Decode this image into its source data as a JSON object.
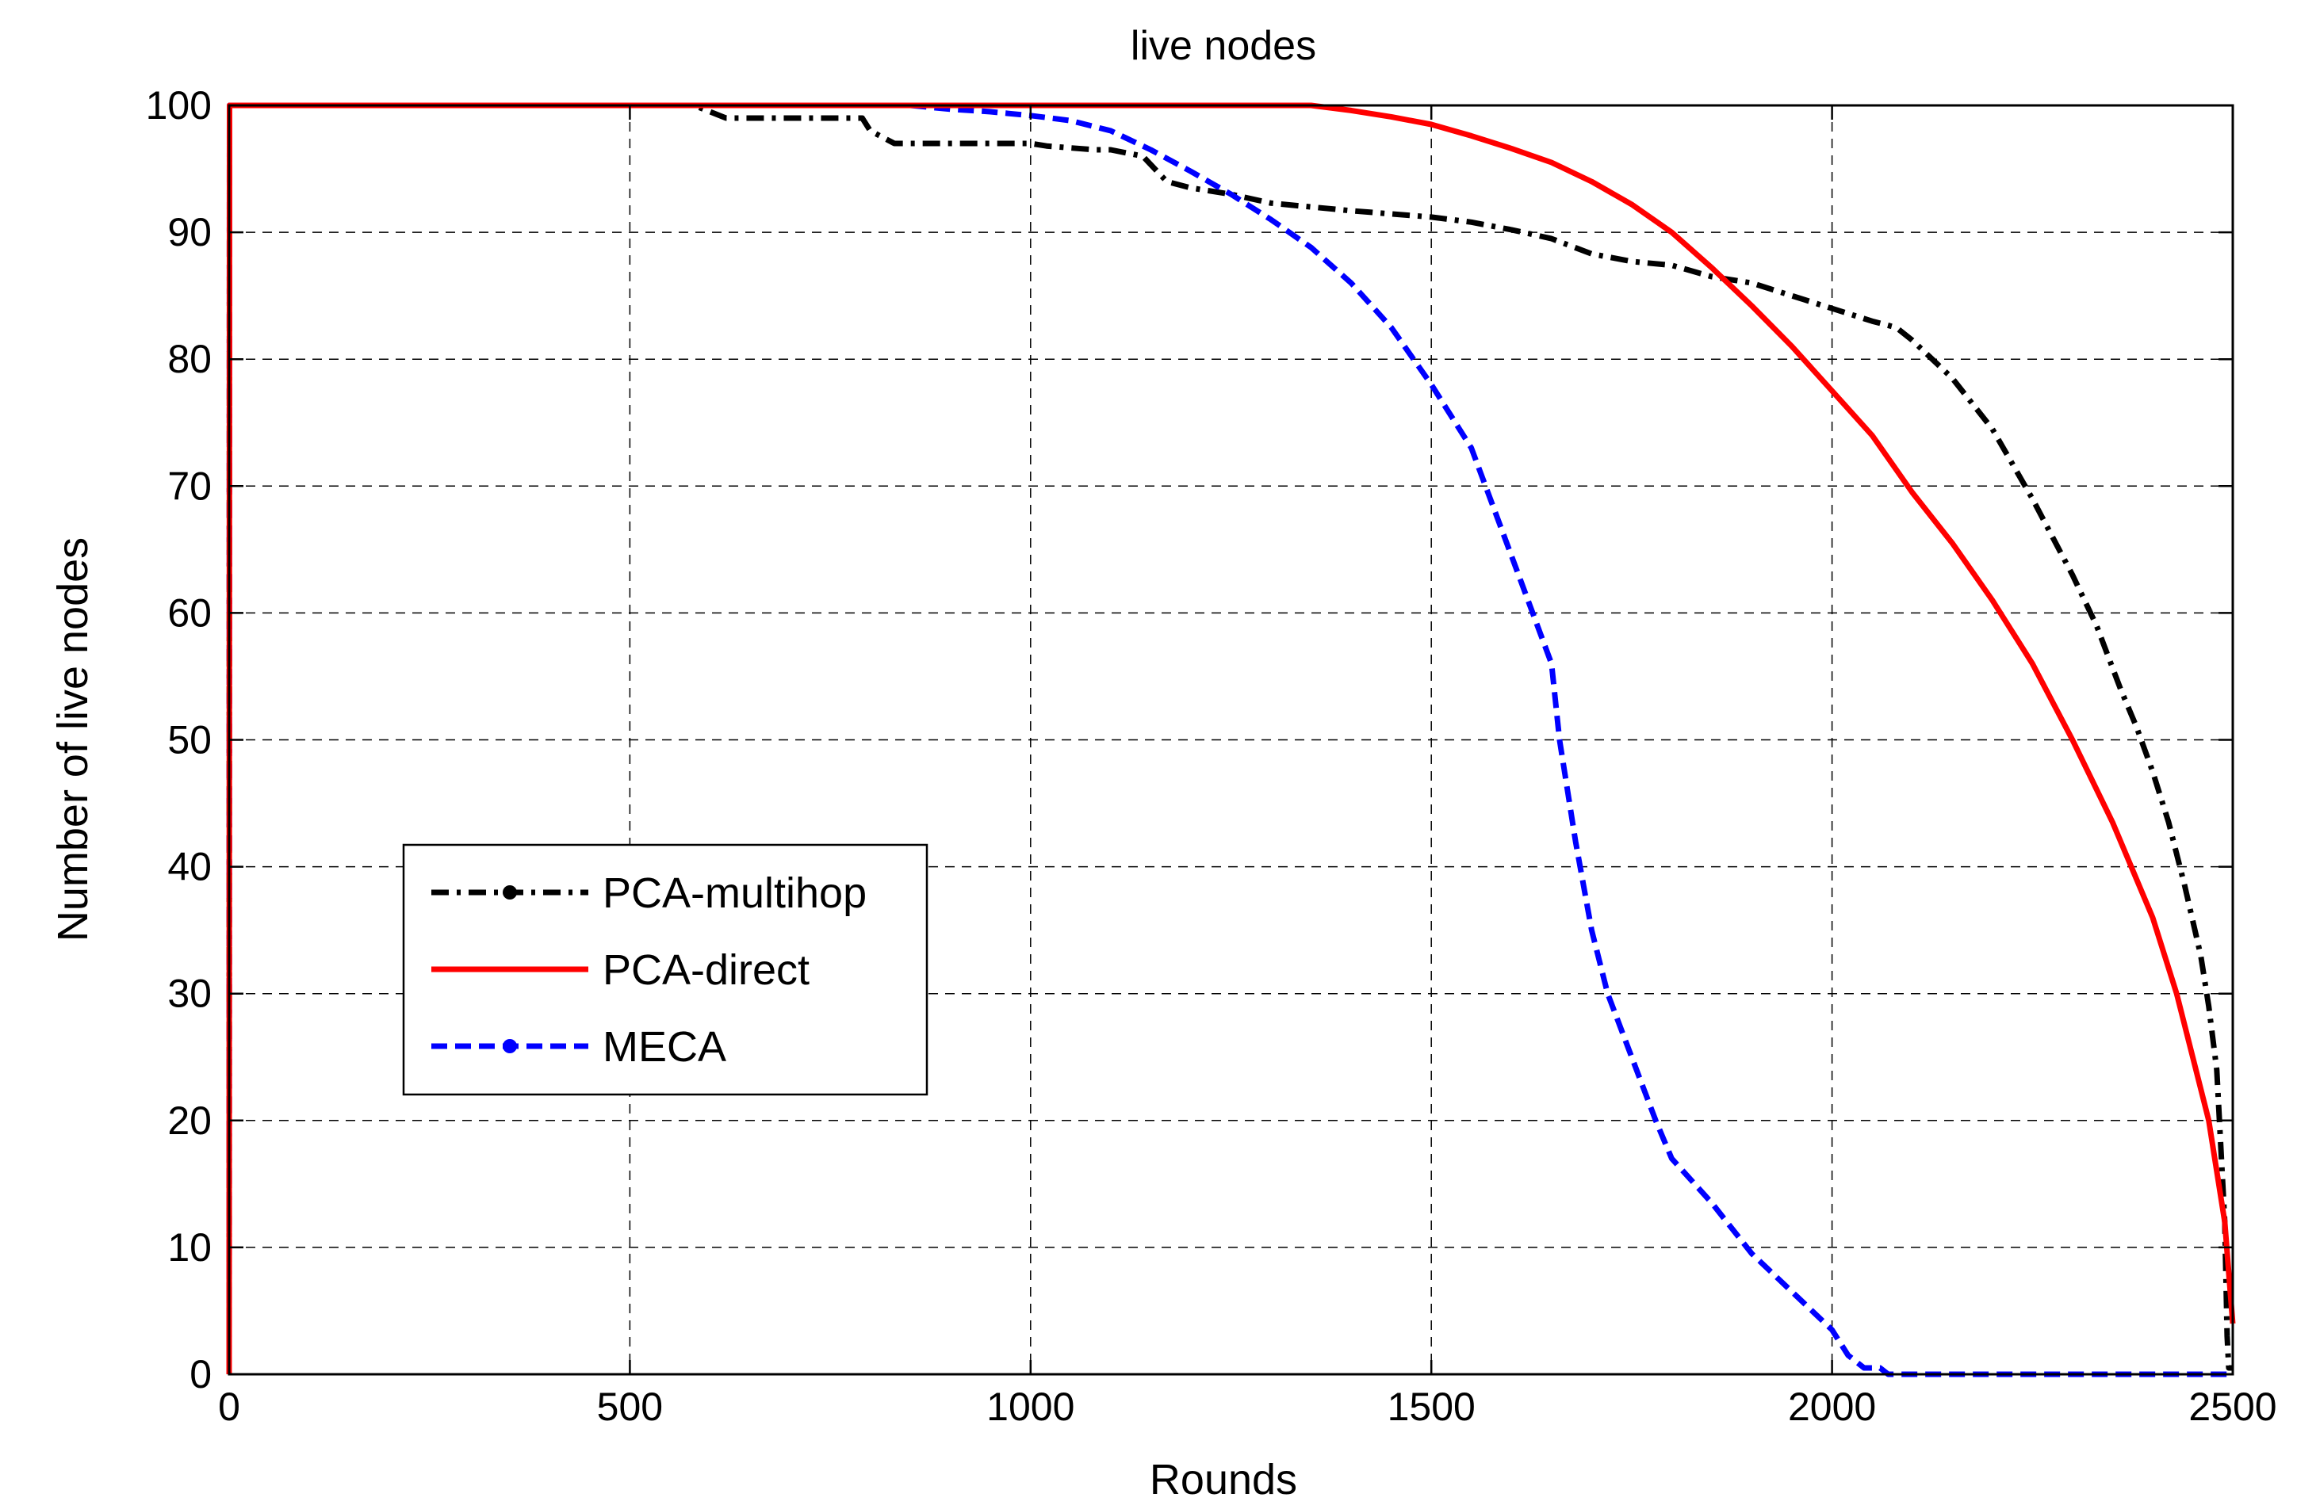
{
  "chart_data": {
    "type": "line",
    "title": "live nodes",
    "xlabel": "Rounds",
    "ylabel": "Number of live nodes",
    "xlim": [
      0,
      2500
    ],
    "ylim": [
      0,
      100
    ],
    "xticks": [
      0,
      500,
      1000,
      1500,
      2000,
      2500
    ],
    "yticks": [
      0,
      10,
      20,
      30,
      40,
      50,
      60,
      70,
      80,
      90,
      100
    ],
    "grid": true,
    "legend_position": "lower-left",
    "series": [
      {
        "name": "PCA-multihop",
        "color": "#000000",
        "style": "dash-dot",
        "x": [
          0,
          0.5,
          580,
          620,
          790,
          800,
          830,
          900,
          1000,
          1020,
          1080,
          1100,
          1140,
          1170,
          1200,
          1250,
          1300,
          1350,
          1400,
          1500,
          1550,
          1600,
          1650,
          1700,
          1750,
          1800,
          1850,
          1900,
          1950,
          2000,
          2050,
          2080,
          2100,
          2150,
          2200,
          2250,
          2300,
          2330,
          2360,
          2380,
          2400,
          2420,
          2440,
          2460,
          2470,
          2480,
          2490,
          2493,
          2495,
          2500
        ],
        "y": [
          0,
          100,
          100,
          99,
          99,
          98,
          97,
          97,
          97,
          96.8,
          96.5,
          96.5,
          96,
          94,
          93.5,
          93,
          92.3,
          92,
          91.7,
          91.2,
          90.8,
          90.2,
          89.5,
          88.3,
          87.7,
          87.4,
          86.5,
          86,
          85,
          84,
          83,
          82.5,
          81.5,
          78.5,
          74.5,
          69,
          63,
          59,
          54,
          51,
          47.5,
          43.5,
          38.5,
          33,
          29,
          24,
          12,
          3,
          0.5,
          0.5
        ]
      },
      {
        "name": "PCA-direct",
        "color": "#ff0000",
        "style": "solid",
        "x": [
          0,
          0.5,
          1300,
          1350,
          1400,
          1450,
          1500,
          1550,
          1600,
          1650,
          1700,
          1750,
          1800,
          1850,
          1900,
          1950,
          2000,
          2050,
          2100,
          2150,
          2200,
          2250,
          2300,
          2350,
          2400,
          2430,
          2450,
          2470,
          2480,
          2490,
          2495,
          2500
        ],
        "y": [
          0,
          100,
          100,
          100,
          99.6,
          99.1,
          98.5,
          97.6,
          96.6,
          95.5,
          94,
          92.2,
          90,
          87.2,
          84.2,
          81,
          77.5,
          74,
          69.5,
          65.5,
          61,
          56,
          50,
          43.5,
          36,
          30,
          25,
          20,
          16,
          12,
          8,
          4
        ]
      },
      {
        "name": "MECA",
        "color": "#0000ff",
        "style": "dashed",
        "x": [
          0,
          0.5,
          850,
          900,
          950,
          1000,
          1050,
          1100,
          1150,
          1200,
          1250,
          1300,
          1350,
          1400,
          1450,
          1500,
          1550,
          1600,
          1650,
          1660,
          1680,
          1700,
          1720,
          1750,
          1780,
          1800,
          1850,
          1900,
          1950,
          2000,
          2020,
          2040,
          2060,
          2070,
          2100,
          2200,
          2300,
          2400,
          2500
        ],
        "y": [
          0,
          100,
          100,
          99.7,
          99.5,
          99.2,
          98.8,
          98,
          96.5,
          94.8,
          93,
          91,
          88.8,
          86,
          82.5,
          78,
          73,
          64.5,
          56,
          50,
          42,
          35,
          30,
          25,
          20,
          17,
          13.5,
          9.5,
          6.5,
          3.5,
          1.5,
          0.5,
          0.5,
          0,
          0,
          0,
          0,
          0,
          0
        ]
      }
    ]
  }
}
